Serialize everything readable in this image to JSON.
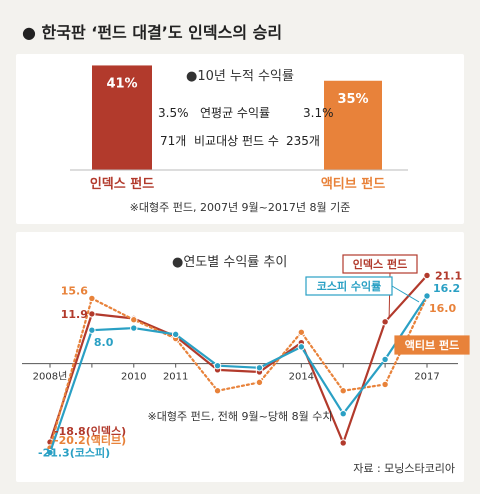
{
  "title": "● 한국판 ‘펀드 대결’도 인덱스의 승리",
  "colors": {
    "index": "#b23a2c",
    "active": "#e8823a",
    "kospi": "#2aa0c4",
    "text": "#222222",
    "panel": "#ffffff"
  },
  "chart_data": [
    {
      "type": "bar",
      "title": "●10년 누적 수익률",
      "categories": [
        "인덱스 펀드",
        "액티브 펀드"
      ],
      "values": [
        41,
        35
      ],
      "value_labels": [
        "41%",
        "35%"
      ],
      "comparison_rows": [
        {
          "left": "3.5%",
          "label": "연평균 수익률",
          "right": "3.1%"
        },
        {
          "left": "71개",
          "label": "비교대상 펀드 수",
          "right": "235개"
        }
      ],
      "footnote": "※대형주 펀드, 2007년 9월~2017년 8월 기준"
    },
    {
      "type": "line",
      "title": "●연도별 수익률 추이",
      "x": [
        2008,
        2009,
        2010,
        2011,
        2012,
        2013,
        2014,
        2015,
        2016,
        2017
      ],
      "x_tick_labels": [
        {
          "x": 2008,
          "label": "2008년"
        },
        {
          "x": 2010,
          "label": "2010"
        },
        {
          "x": 2011,
          "label": "2011"
        },
        {
          "x": 2014,
          "label": "2014"
        },
        {
          "x": 2017,
          "label": "2017"
        }
      ],
      "ylim": [
        -25,
        26
      ],
      "series": [
        {
          "name": "인덱스 펀드",
          "color_key": "index",
          "style": "solid",
          "values": [
            -18.8,
            11.9,
            10.8,
            6.5,
            -1.5,
            -2.0,
            5.0,
            -19.0,
            10.0,
            21.1
          ],
          "labels": {
            "first": "-18.8(인덱스)",
            "last": "21.1"
          }
        },
        {
          "name": "액티브 펀드",
          "color_key": "active",
          "style": "dotted",
          "values": [
            -20.2,
            15.6,
            10.5,
            6.0,
            -6.5,
            -4.5,
            7.5,
            -6.5,
            -5.0,
            16.0
          ],
          "labels": {
            "first": "-20.2(액티브)",
            "last": "16.0"
          }
        },
        {
          "name": "코스피 수익률",
          "color_key": "kospi",
          "style": "solid",
          "values": [
            -21.3,
            8.0,
            8.5,
            7.0,
            -0.5,
            -1.0,
            4.0,
            -12.0,
            1.0,
            16.2
          ],
          "labels": {
            "first": "-21.3(코스피)",
            "last": "16.2"
          }
        }
      ],
      "footnote": "※대형주 펀드, 전해 9월~당해 8월 수치",
      "source": "자료 : 모닝스타코리아"
    }
  ]
}
